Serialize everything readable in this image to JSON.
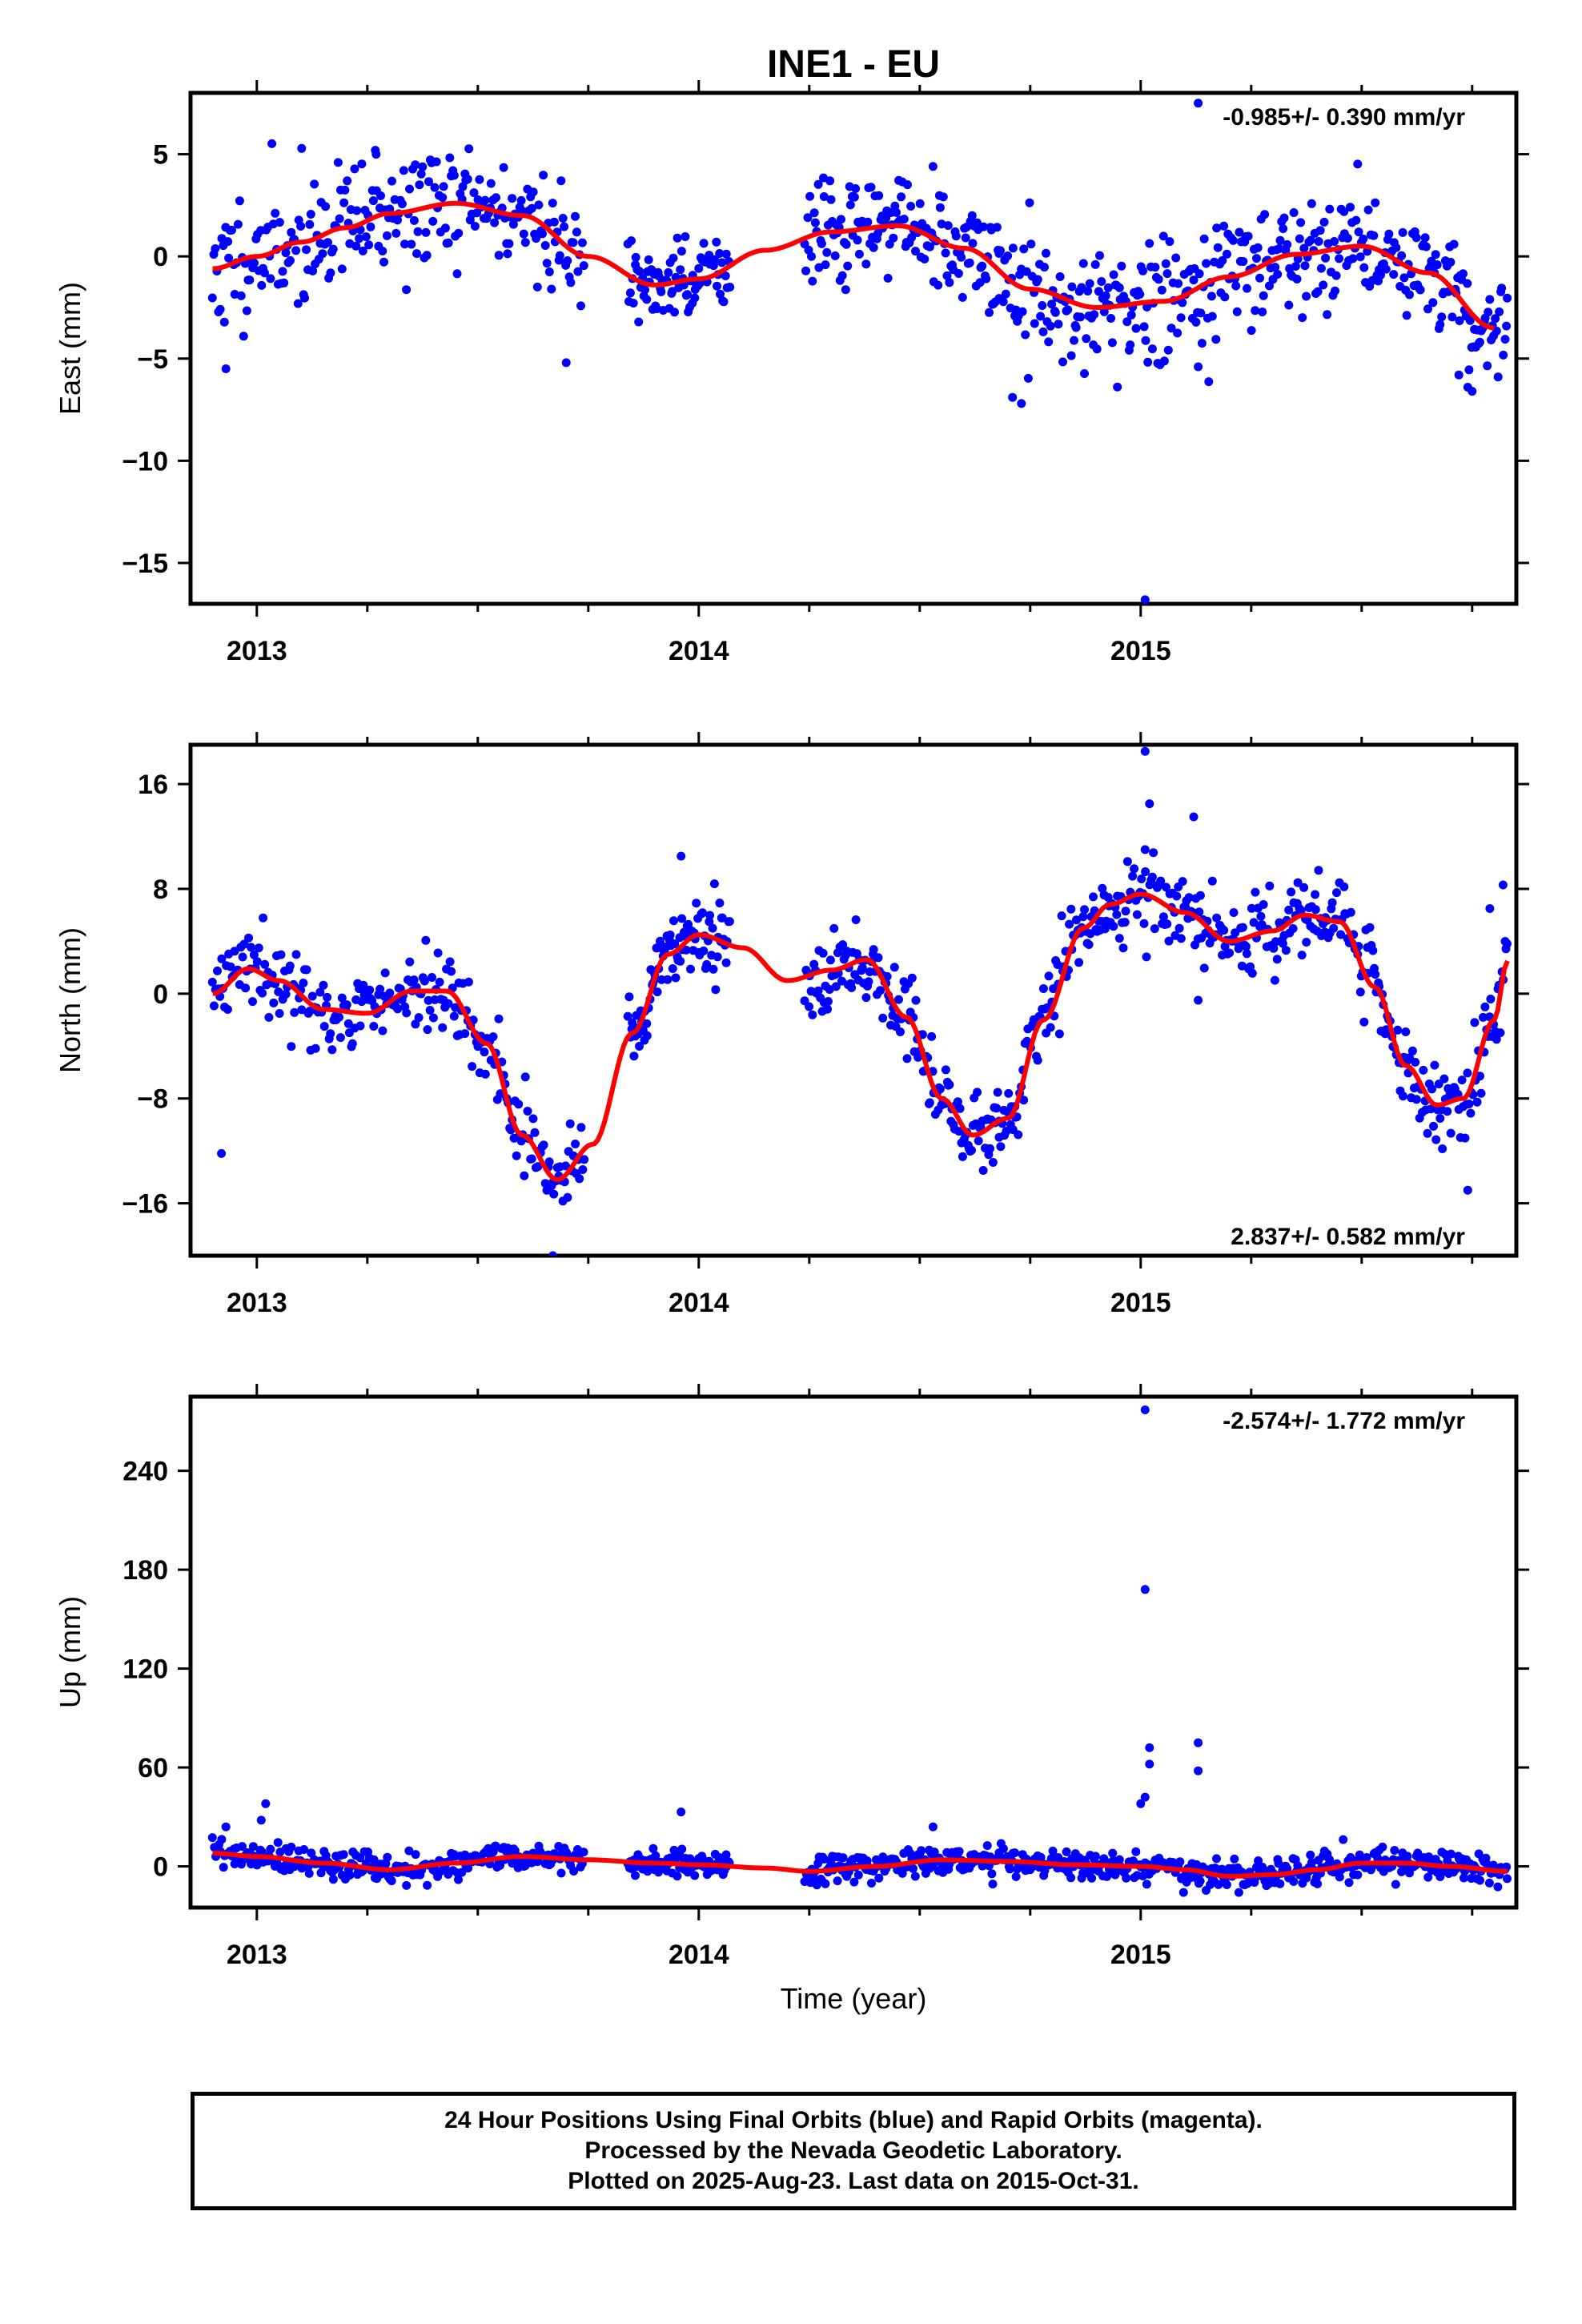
{
  "title": "INE1 - EU",
  "footer": {
    "line1": "24 Hour Positions Using Final Orbits (blue) and Rapid Orbits (magenta).",
    "line2": "Processed by the Nevada Geodetic Laboratory.",
    "line3": "Plotted on 2025-Aug-23. Last data on 2015-Oct-31."
  },
  "colors": {
    "points": "#0000ff",
    "fit": "#ff0000",
    "axes": "#000000"
  },
  "chart_data": [
    {
      "type": "scatter",
      "ylabel": "East (mm)",
      "xlabel": "",
      "rate": "-0.985+/- 0.390 mm/yr",
      "rate_placement": "top-right",
      "xlim": [
        2012.85,
        2015.85
      ],
      "ylim": [
        -17.0,
        8.0
      ],
      "xticks": [
        "2013",
        "2014",
        "2015"
      ],
      "yticks": [
        "5",
        "0",
        "−5",
        "−10",
        "−15"
      ],
      "ytick_values": [
        5,
        0,
        -5,
        -10,
        -15
      ],
      "fit": {
        "x": [
          2012.9,
          2013.0,
          2013.1,
          2013.2,
          2013.3,
          2013.45,
          2013.6,
          2013.75,
          2013.9,
          2014.0,
          2014.15,
          2014.3,
          2014.45,
          2014.6,
          2014.75,
          2014.9,
          2015.05,
          2015.2,
          2015.35,
          2015.5,
          2015.65,
          2015.8
        ],
        "y": [
          -0.6,
          0.0,
          0.7,
          1.4,
          2.1,
          2.6,
          2.0,
          0.0,
          -1.4,
          -1.1,
          0.3,
          1.2,
          1.5,
          0.4,
          -1.6,
          -2.5,
          -2.2,
          -1.0,
          0.1,
          0.5,
          -0.8,
          -3.5
        ]
      },
      "segments": [
        {
          "from": 2012.9,
          "to": 2013.74,
          "n": 250,
          "seed": 11,
          "noise": 1.5
        },
        {
          "from": 2013.84,
          "to": 2014.07,
          "n": 90,
          "seed": 12,
          "noise": 1.1
        },
        {
          "from": 2014.24,
          "to": 2014.68,
          "n": 150,
          "seed": 13,
          "noise": 1.2
        },
        {
          "from": 2014.68,
          "to": 2015.83,
          "n": 370,
          "seed": 14,
          "noise": 1.5
        }
      ],
      "outliers": [
        {
          "x": 2012.93,
          "y": -5.5
        },
        {
          "x": 2013.7,
          "y": -5.2
        },
        {
          "x": 2014.73,
          "y": -7.2
        },
        {
          "x": 2014.71,
          "y": -6.9
        },
        {
          "x": 2015.01,
          "y": -16.8
        },
        {
          "x": 2015.13,
          "y": 7.5
        },
        {
          "x": 2015.13,
          "y": -5.4
        },
        {
          "x": 2015.74,
          "y": -6.4
        },
        {
          "x": 2015.75,
          "y": -6.6
        },
        {
          "x": 2015.72,
          "y": -5.8
        },
        {
          "x": 2013.27,
          "y": 5.0
        },
        {
          "x": 2014.53,
          "y": 4.4
        }
      ]
    },
    {
      "type": "scatter",
      "ylabel": "North (mm)",
      "xlabel": "",
      "rate": "2.837+/- 0.582 mm/yr",
      "rate_placement": "bottom-right",
      "xlim": [
        2012.85,
        2015.85
      ],
      "ylim": [
        -20.0,
        19.0
      ],
      "xticks": [
        "2013",
        "2014",
        "2015"
      ],
      "yticks": [
        "16",
        "8",
        "0",
        "−8",
        "−16"
      ],
      "ytick_values": [
        16,
        8,
        0,
        -8,
        -16
      ],
      "fit": {
        "x": [
          2012.9,
          2012.98,
          2013.05,
          2013.15,
          2013.25,
          2013.35,
          2013.43,
          2013.52,
          2013.6,
          2013.68,
          2013.76,
          2013.85,
          2013.93,
          2014.0,
          2014.1,
          2014.2,
          2014.3,
          2014.38,
          2014.47,
          2014.55,
          2014.62,
          2014.7,
          2014.78,
          2014.87,
          2014.93,
          2015.0,
          2015.1,
          2015.2,
          2015.3,
          2015.37,
          2015.45,
          2015.53,
          2015.6,
          2015.67,
          2015.73,
          2015.8,
          2015.83
        ],
        "y": [
          0.0,
          1.9,
          1.0,
          -1.2,
          -1.5,
          0.2,
          0.2,
          -3.8,
          -10.8,
          -14.2,
          -11.5,
          -3.0,
          3.0,
          4.5,
          3.5,
          1.0,
          1.8,
          2.6,
          -1.8,
          -8.0,
          -10.8,
          -9.5,
          -2.0,
          5.0,
          6.8,
          7.6,
          6.2,
          4.0,
          4.8,
          6.0,
          5.5,
          0.5,
          -5.5,
          -8.5,
          -8.0,
          -2.0,
          2.5
        ]
      },
      "segments": [
        {
          "from": 2012.9,
          "to": 2013.74,
          "n": 250,
          "seed": 21,
          "noise": 1.5
        },
        {
          "from": 2013.84,
          "to": 2014.07,
          "n": 90,
          "seed": 22,
          "noise": 1.3
        },
        {
          "from": 2014.24,
          "to": 2014.68,
          "n": 150,
          "seed": 23,
          "noise": 1.4
        },
        {
          "from": 2014.68,
          "to": 2015.83,
          "n": 370,
          "seed": 24,
          "noise": 1.6
        }
      ],
      "outliers": [
        {
          "x": 2015.01,
          "y": 18.5
        },
        {
          "x": 2015.02,
          "y": 14.5
        },
        {
          "x": 2015.12,
          "y": 13.5
        },
        {
          "x": 2015.01,
          "y": 11.0
        },
        {
          "x": 2013.96,
          "y": 10.5
        },
        {
          "x": 2013.67,
          "y": -20.0
        },
        {
          "x": 2012.92,
          "y": -12.2
        },
        {
          "x": 2015.82,
          "y": 8.3
        },
        {
          "x": 2015.79,
          "y": 6.5
        },
        {
          "x": 2015.13,
          "y": -0.5
        },
        {
          "x": 2015.74,
          "y": -15.0
        }
      ]
    },
    {
      "type": "scatter",
      "ylabel": "Up (mm)",
      "xlabel": "Time (year)",
      "rate": "-2.574+/- 1.772 mm/yr",
      "rate_placement": "top-right",
      "xlim": [
        2012.85,
        2015.85
      ],
      "ylim": [
        -25.0,
        285.0
      ],
      "xticks": [
        "2013",
        "2014",
        "2015"
      ],
      "yticks": [
        "240",
        "180",
        "120",
        "60",
        "0"
      ],
      "ytick_values": [
        240,
        180,
        120,
        60,
        0
      ],
      "fit": {
        "x": [
          2012.9,
          2013.0,
          2013.15,
          2013.3,
          2013.45,
          2013.6,
          2013.75,
          2013.9,
          2014.0,
          2014.15,
          2014.25,
          2014.4,
          2014.55,
          2014.7,
          2014.85,
          2015.0,
          2015.1,
          2015.2,
          2015.3,
          2015.4,
          2015.5,
          2015.6,
          2015.7,
          2015.83
        ],
        "y": [
          8,
          6,
          2,
          -2,
          2,
          6,
          4,
          2,
          1,
          -1,
          -3,
          0,
          4,
          3,
          1,
          0,
          -2,
          -6,
          -5,
          -2,
          2,
          2,
          0,
          -3
        ]
      },
      "segments": [
        {
          "from": 2012.9,
          "to": 2013.74,
          "n": 250,
          "seed": 31,
          "noise": 4.5
        },
        {
          "from": 2013.84,
          "to": 2014.07,
          "n": 90,
          "seed": 32,
          "noise": 4.5
        },
        {
          "from": 2014.24,
          "to": 2014.68,
          "n": 150,
          "seed": 33,
          "noise": 4.5
        },
        {
          "from": 2014.68,
          "to": 2015.83,
          "n": 370,
          "seed": 34,
          "noise": 4.5
        }
      ],
      "outliers": [
        {
          "x": 2015.01,
          "y": 277
        },
        {
          "x": 2015.01,
          "y": 168
        },
        {
          "x": 2015.02,
          "y": 72
        },
        {
          "x": 2015.02,
          "y": 62
        },
        {
          "x": 2015.13,
          "y": 75
        },
        {
          "x": 2015.13,
          "y": 58
        },
        {
          "x": 2015.01,
          "y": 42
        },
        {
          "x": 2015.0,
          "y": 38
        },
        {
          "x": 2013.02,
          "y": 38
        },
        {
          "x": 2013.01,
          "y": 28
        },
        {
          "x": 2013.96,
          "y": 33
        },
        {
          "x": 2012.93,
          "y": 24
        },
        {
          "x": 2014.53,
          "y": 24
        }
      ]
    }
  ]
}
